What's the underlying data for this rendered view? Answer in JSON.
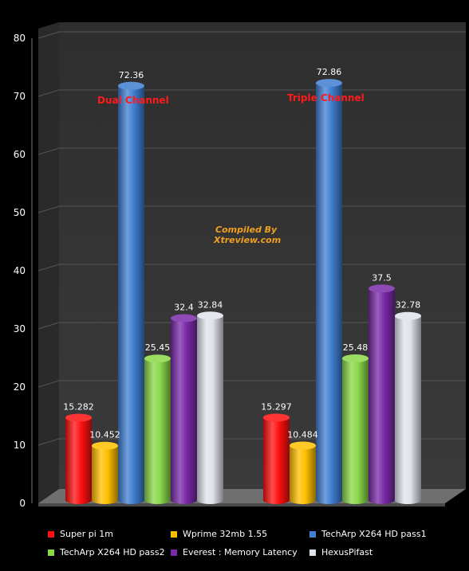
{
  "chart_data": {
    "type": "bar",
    "categories": [
      "",
      ""
    ],
    "series": [
      {
        "name": "Super pi 1m",
        "values": [
          15.282,
          15.297
        ],
        "color": "#ff1010"
      },
      {
        "name": "Wprime 32mb 1.55",
        "values": [
          10.452,
          10.484
        ],
        "color": "#ffc000"
      },
      {
        "name": "TechArp X264 HD pass1",
        "values": [
          72.36,
          72.86
        ],
        "color": "#3f7ed1"
      },
      {
        "name": "TechArp X264 HD pass2",
        "values": [
          25.45,
          25.48
        ],
        "color": "#8ad848"
      },
      {
        "name": "Everest : Memory Latency",
        "values": [
          32.4,
          37.5
        ],
        "color": "#7a2aa8"
      },
      {
        "name": "HexusPifast",
        "values": [
          32.84,
          32.78
        ],
        "color": "#dfe3ea"
      }
    ],
    "data_labels": [
      [
        "15.282",
        "10.452",
        "72.36",
        "25.45",
        "32.4",
        "32.84"
      ],
      [
        "15.297",
        "10.484",
        "72.86",
        "25.48",
        "37.5",
        "32.78"
      ]
    ],
    "ylim": [
      0,
      80
    ],
    "yticks": [
      "0",
      "10",
      "20",
      "30",
      "40",
      "50",
      "60",
      "70",
      "80"
    ],
    "title": "",
    "xlabel": "",
    "ylabel": "",
    "grid": true,
    "legend": "bottom",
    "annotations": [
      {
        "text": "Dual Channel",
        "color": "#ff1a1a"
      },
      {
        "text": "Triple Channel",
        "color": "#ff1a1a"
      },
      {
        "text": "Compiled By",
        "color": "#f0a020"
      },
      {
        "text": "Xtreview.com",
        "color": "#f0a020"
      }
    ]
  }
}
